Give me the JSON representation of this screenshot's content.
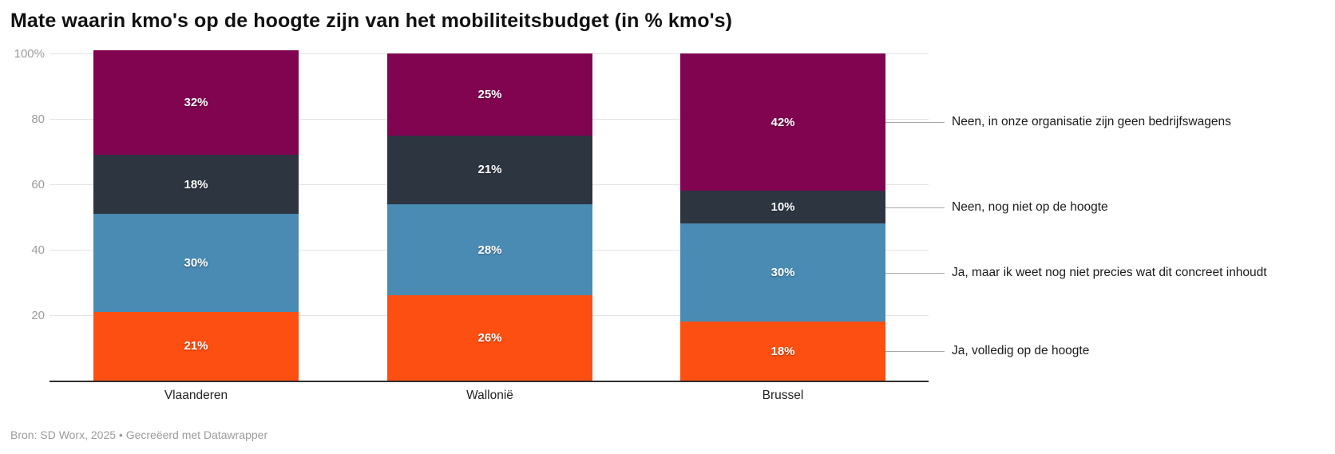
{
  "title": "Mate waarin kmo's op de hoogte zijn van het mobiliteitsbudget (in % kmo's)",
  "footer": "Bron: SD Worx, 2025 • Gecreëerd met Datawrapper",
  "chart_data": {
    "type": "bar",
    "stacked": true,
    "orientation": "vertical",
    "title": "Mate waarin kmo's op de hoogte zijn van het mobiliteitsbudget (in % kmo's)",
    "categories": [
      "Vlaanderen",
      "Wallonië",
      "Brussel"
    ],
    "series": [
      {
        "name": "Ja, volledig op de hoogte",
        "color": "#fd4f11",
        "values": [
          21,
          26,
          18
        ]
      },
      {
        "name": "Ja, maar ik weet nog niet precies wat dit concreet inhoudt",
        "color": "#4a8bb3",
        "values": [
          30,
          28,
          30
        ]
      },
      {
        "name": "Neen, nog niet op de hoogte",
        "color": "#2d3541",
        "values": [
          18,
          21,
          10
        ]
      },
      {
        "name": "Neen, in onze organisatie zijn geen bedrijfswagens",
        "color": "#800450",
        "values": [
          32,
          25,
          42
        ]
      }
    ],
    "value_suffix": "%",
    "y_ticks": [
      {
        "label": "100%",
        "value": 100
      },
      {
        "label": "80",
        "value": 80
      },
      {
        "label": "60",
        "value": 60
      },
      {
        "label": "40",
        "value": 40
      },
      {
        "label": "20",
        "value": 20
      }
    ],
    "ylim": [
      0,
      100
    ],
    "grid": true,
    "legend_position": "right",
    "legend_labels_top_to_bottom": [
      "Neen, in onze organisatie zijn geen bedrijfswagens",
      "Neen, nog niet op de hoogte",
      "Ja, maar ik weet nog niet precies wat dit concreet inhoudt",
      "Ja, volledig op de hoogte"
    ]
  },
  "colors": {
    "background": "#ffffff",
    "title_text": "#111111",
    "axis_line": "#2f2f2f",
    "gridline": "#e3e3e3",
    "tick_text": "#9c9c9c",
    "segment_value_text": "#ffffff",
    "footer_text": "#9b9b9b"
  }
}
